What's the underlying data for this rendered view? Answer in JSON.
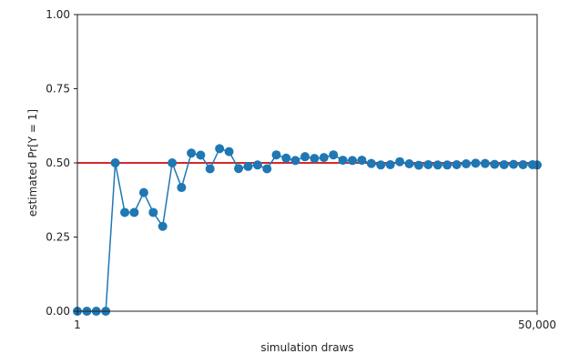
{
  "chart_data": {
    "type": "line",
    "title": "",
    "xlabel": "simulation draws",
    "ylabel": "estimated Pr[Y = 1]",
    "x_scale": "log",
    "xlim": [
      1,
      50000
    ],
    "ylim": [
      0,
      1
    ],
    "x_tick_labels": [
      {
        "value": 1,
        "label": "1"
      },
      {
        "value": 50000,
        "label": "50,000"
      }
    ],
    "y_tick_labels": [
      {
        "value": 0,
        "label": "0.00"
      },
      {
        "value": 0.25,
        "label": "0.25"
      },
      {
        "value": 0.5,
        "label": "0.50"
      },
      {
        "value": 0.75,
        "label": "0.75"
      },
      {
        "value": 1,
        "label": "1.00"
      }
    ],
    "grid": false,
    "legend": "none",
    "reference_line": {
      "y": 0.5,
      "color": "#d62728"
    },
    "series": [
      {
        "color": "#1f77b4",
        "marker": "circle",
        "x": [
          1,
          1.25,
          1.56,
          1.95,
          2.44,
          3.05,
          3.81,
          4.77,
          5.96,
          7.45,
          9.31,
          11.6,
          14.6,
          18.2,
          22.7,
          28.4,
          35.5,
          44.4,
          55.5,
          69.4,
          86.7,
          108,
          136,
          169,
          212,
          265,
          331,
          414,
          517,
          647,
          808,
          1010,
          1262,
          1578,
          1972,
          2466,
          3082,
          3853,
          4816,
          6020,
          7525,
          9406,
          11758,
          14697,
          18372,
          22965,
          28706,
          35883,
          44853,
          50000
        ],
        "y": [
          0.0,
          0.0,
          0.0,
          0.0,
          0.5,
          0.333,
          0.333,
          0.4,
          0.333,
          0.286,
          0.5,
          0.417,
          0.533,
          0.526,
          0.48,
          0.548,
          0.538,
          0.481,
          0.488,
          0.493,
          0.48,
          0.527,
          0.516,
          0.508,
          0.521,
          0.515,
          0.518,
          0.527,
          0.509,
          0.508,
          0.509,
          0.498,
          0.493,
          0.494,
          0.504,
          0.497,
          0.492,
          0.494,
          0.493,
          0.493,
          0.494,
          0.497,
          0.499,
          0.498,
          0.495,
          0.494,
          0.495,
          0.494,
          0.494,
          0.493
        ]
      }
    ]
  }
}
